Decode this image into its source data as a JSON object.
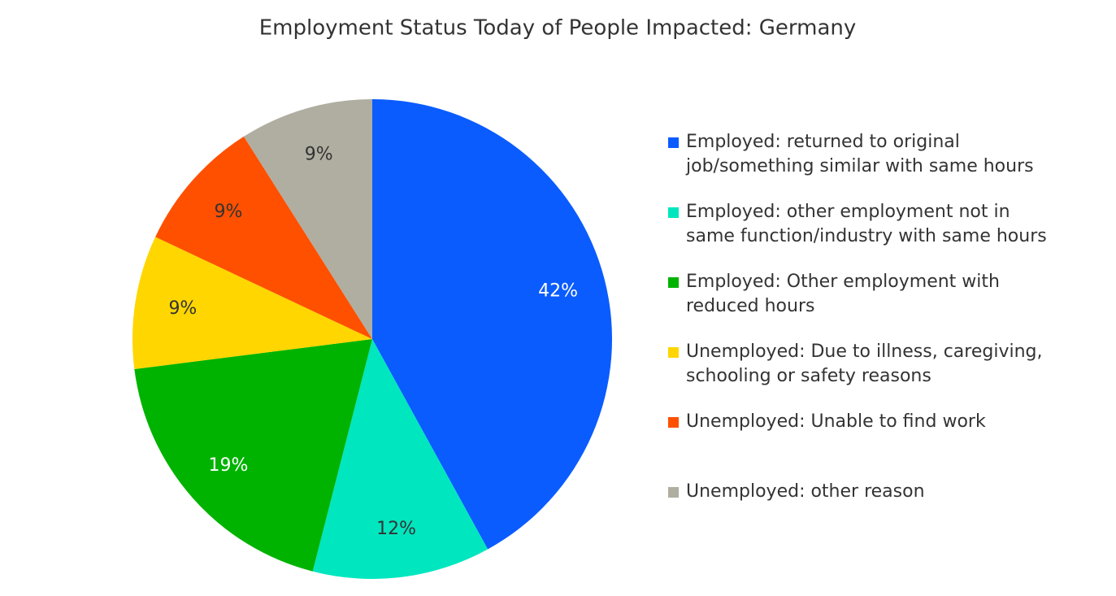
{
  "chart_data": {
    "type": "pie",
    "title": "Employment Status Today of People Impacted: Germany",
    "categories": [
      "Employed: returned to original job/something similar with same hours",
      "Employed: other employment not in same function/industry with same hours",
      "Employed: Other employment with reduced hours",
      "Unemployed: Due to illness, caregiving, schooling or safety reasons",
      "Unemployed: Unable to find work",
      "Unemployed: other reason"
    ],
    "values": [
      42,
      12,
      19,
      9,
      9,
      9
    ],
    "value_labels": [
      "42%",
      "12%",
      "19%",
      "9%",
      "9%",
      "9%"
    ],
    "colors": [
      "#0a5cff",
      "#00e6bf",
      "#00b300",
      "#ffd600",
      "#ff5000",
      "#b0aea1"
    ],
    "legend": "right"
  }
}
